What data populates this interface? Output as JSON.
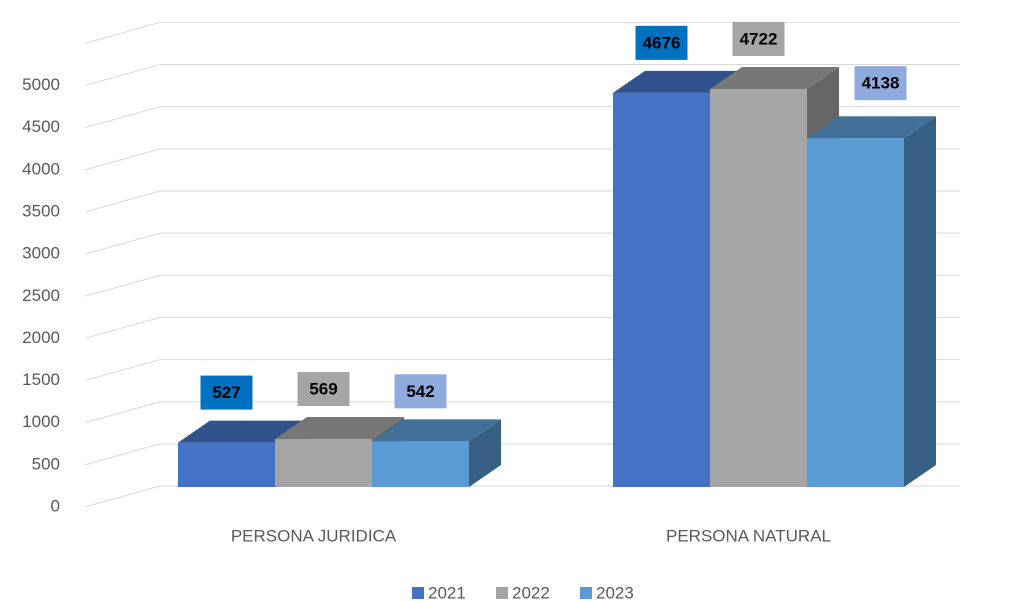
{
  "chart_data": {
    "type": "bar3d",
    "categories": [
      "PERSONA JURIDICA",
      "PERSONA NATURAL"
    ],
    "series": [
      {
        "name": "2021",
        "color": "#4472c4",
        "label_color": "#0070c0",
        "values": [
          527,
          4676
        ]
      },
      {
        "name": "2022",
        "color": "#a5a5a5",
        "label_color": "#a5a5a5",
        "values": [
          569,
          4722
        ]
      },
      {
        "name": "2023",
        "color": "#5b9bd5",
        "label_color": "#8faadc",
        "values": [
          542,
          4138
        ]
      }
    ],
    "ylim": [
      0,
      5500
    ],
    "yticks": [
      0,
      500,
      1000,
      1500,
      2000,
      2500,
      3000,
      3500,
      4000,
      4500,
      5000
    ],
    "grid": true,
    "legend": "bottom"
  }
}
